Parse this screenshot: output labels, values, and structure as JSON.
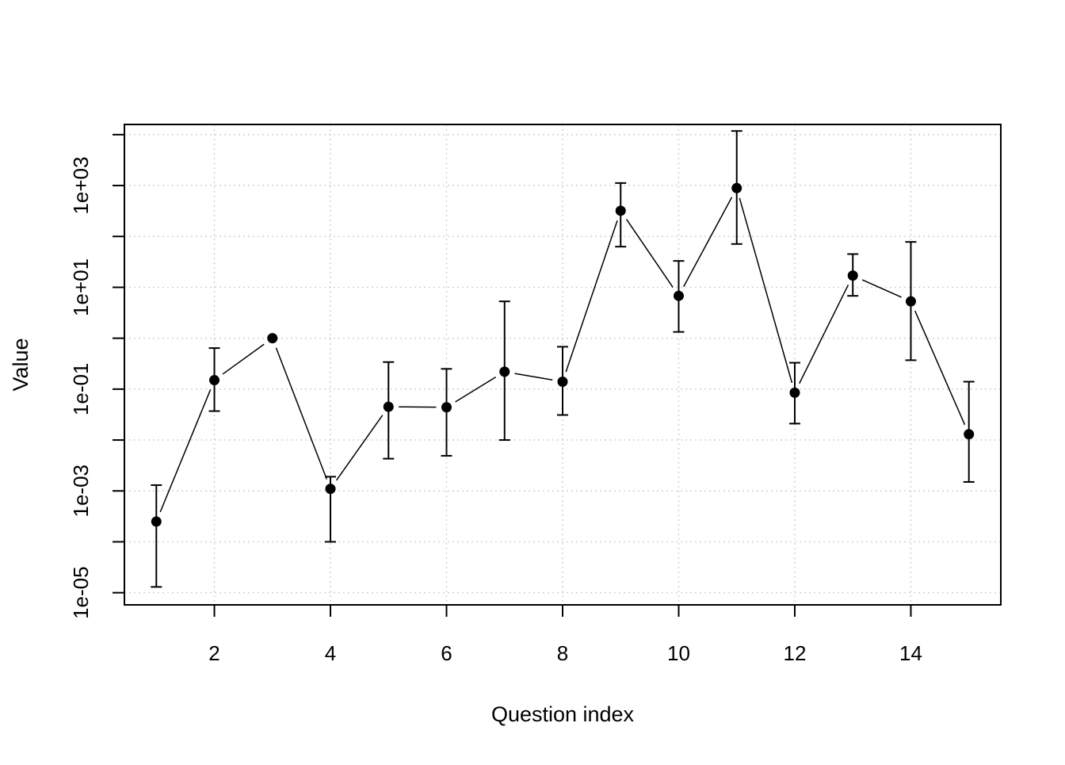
{
  "chart_data": {
    "type": "scatter",
    "title": "",
    "xlabel": "Question index",
    "ylabel": "Value",
    "xlim": [
      0.45,
      15.55
    ],
    "ylim": [
      5.77e-06,
      15850
    ],
    "y_scale": "log10",
    "grid": true,
    "x_ticks": [
      2,
      4,
      6,
      8,
      10,
      12,
      14
    ],
    "x_tick_labels": [
      "2",
      "4",
      "6",
      "8",
      "10",
      "12",
      "14"
    ],
    "y_major_ticks": [
      1e-05,
      0.001,
      0.1,
      10,
      1000
    ],
    "y_tick_labels": [
      "1e-05",
      "1e-03",
      "1e-01",
      "1e+01",
      "1e+03"
    ],
    "y_minor_ticks": [
      0.0001,
      0.01,
      1,
      100,
      10000
    ],
    "series": [
      {
        "x": [
          1,
          2,
          3,
          4,
          5,
          6,
          7,
          8,
          9,
          10,
          11,
          12,
          13,
          14,
          15
        ],
        "y": [
          0.00025,
          0.15,
          1.0,
          0.0011,
          0.045,
          0.044,
          0.22,
          0.14,
          320,
          6.8,
          890,
          0.085,
          17,
          5.3,
          0.013
        ],
        "lower": [
          1.3e-05,
          0.037,
          null,
          0.0001,
          0.0043,
          0.0049,
          0.01,
          0.031,
          63,
          1.33,
          71,
          0.021,
          6.8,
          0.37,
          0.0015
        ],
        "upper": [
          0.0013,
          0.64,
          null,
          0.0019,
          0.34,
          0.25,
          5.3,
          0.68,
          1120,
          33,
          11800,
          0.33,
          45,
          78,
          0.14
        ],
        "color": "#000000"
      }
    ]
  }
}
